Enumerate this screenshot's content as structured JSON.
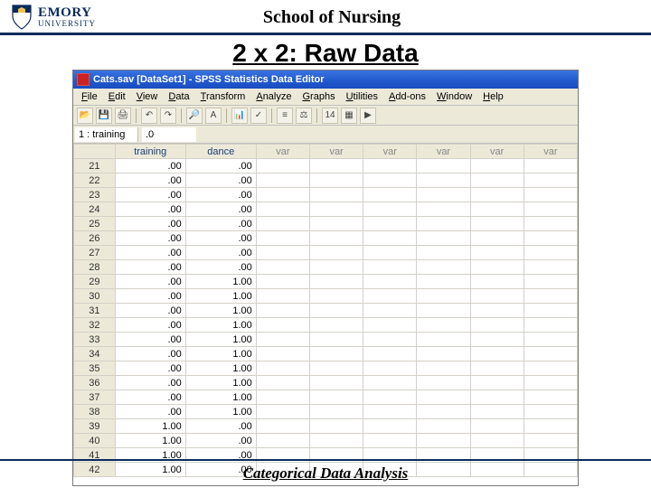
{
  "header": {
    "university_top": "EMORY",
    "university_bot": "UNIVERSITY",
    "school": "School of Nursing"
  },
  "slide": {
    "title": "2 x 2: Raw Data",
    "footer": "Categorical Data Analysis"
  },
  "app": {
    "title": "Cats.sav [DataSet1] - SPSS Statistics Data Editor",
    "menus": [
      "File",
      "Edit",
      "View",
      "Data",
      "Transform",
      "Analyze",
      "Graphs",
      "Utilities",
      "Add-ons",
      "Window",
      "Help"
    ],
    "cell_addr": "1 : training",
    "cell_val": ".0",
    "columns": [
      "training",
      "dance"
    ],
    "var_columns": [
      "var",
      "var",
      "var",
      "var",
      "var",
      "var"
    ],
    "row_start": 21,
    "rows": [
      [
        ".00",
        ".00"
      ],
      [
        ".00",
        ".00"
      ],
      [
        ".00",
        ".00"
      ],
      [
        ".00",
        ".00"
      ],
      [
        ".00",
        ".00"
      ],
      [
        ".00",
        ".00"
      ],
      [
        ".00",
        ".00"
      ],
      [
        ".00",
        ".00"
      ],
      [
        ".00",
        "1.00"
      ],
      [
        ".00",
        "1.00"
      ],
      [
        ".00",
        "1.00"
      ],
      [
        ".00",
        "1.00"
      ],
      [
        ".00",
        "1.00"
      ],
      [
        ".00",
        "1.00"
      ],
      [
        ".00",
        "1.00"
      ],
      [
        ".00",
        "1.00"
      ],
      [
        ".00",
        "1.00"
      ],
      [
        ".00",
        "1.00"
      ],
      [
        "1.00",
        ".00"
      ],
      [
        "1.00",
        ".00"
      ],
      [
        "1.00",
        ".00"
      ],
      [
        "1.00",
        ".00"
      ]
    ]
  },
  "colors": {
    "emory_blue": "#0a2a5c",
    "xp_blue": "#235ccf",
    "panel": "#ece9d8"
  }
}
